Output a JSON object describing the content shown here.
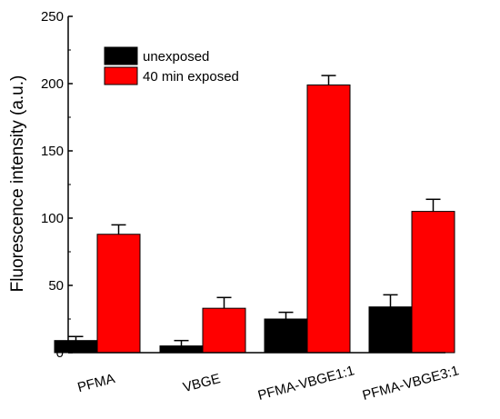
{
  "chart_data": {
    "type": "bar",
    "title": "",
    "xlabel": "",
    "ylabel": "Fluorescence intensity (a.u.)",
    "ylim": [
      0,
      250
    ],
    "yticks": [
      0,
      50,
      100,
      150,
      200,
      250
    ],
    "categories": [
      "PFMA",
      "VBGE",
      "PFMA-VBGE1:1",
      "PFMA-VBGE3:1"
    ],
    "series": [
      {
        "name": "unexposed",
        "color": "#000000",
        "values": [
          9,
          5,
          25,
          34
        ],
        "errors": [
          3,
          4,
          5,
          9
        ]
      },
      {
        "name": "40 min exposed",
        "color": "#ff0000",
        "values": [
          88,
          33,
          199,
          105
        ],
        "errors": [
          7,
          8,
          7,
          9
        ]
      }
    ],
    "legend": "top-left",
    "grid": false
  }
}
